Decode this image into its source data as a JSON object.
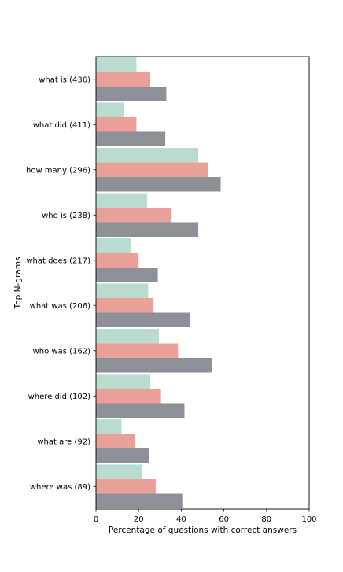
{
  "chart_data": {
    "type": "bar",
    "orientation": "horizontal",
    "categories": [
      "what is (436)",
      "what did (411)",
      "how many (296)",
      "who is (238)",
      "what does (217)",
      "what was (206)",
      "who was (162)",
      "where did (102)",
      "what are (92)",
      "where was (89)"
    ],
    "series": [
      {
        "color": "#b9dbd0",
        "values": [
          19,
          13,
          48,
          24,
          16.5,
          24.5,
          29.5,
          25.5,
          12,
          21.5
        ]
      },
      {
        "color": "#e9a099",
        "values": [
          25.5,
          19,
          52.5,
          35.5,
          20,
          27,
          38.5,
          30.5,
          18.5,
          28
        ]
      },
      {
        "color": "#8e9098",
        "values": [
          33,
          32.5,
          58.5,
          48,
          29,
          44,
          54.5,
          41.5,
          25,
          40.5
        ]
      }
    ],
    "xlabel": "Percentage of questions with correct answers",
    "ylabel": "Top N-grams",
    "xlim": [
      0,
      100
    ],
    "xticks": [
      0,
      20,
      40,
      60,
      80,
      100
    ]
  }
}
